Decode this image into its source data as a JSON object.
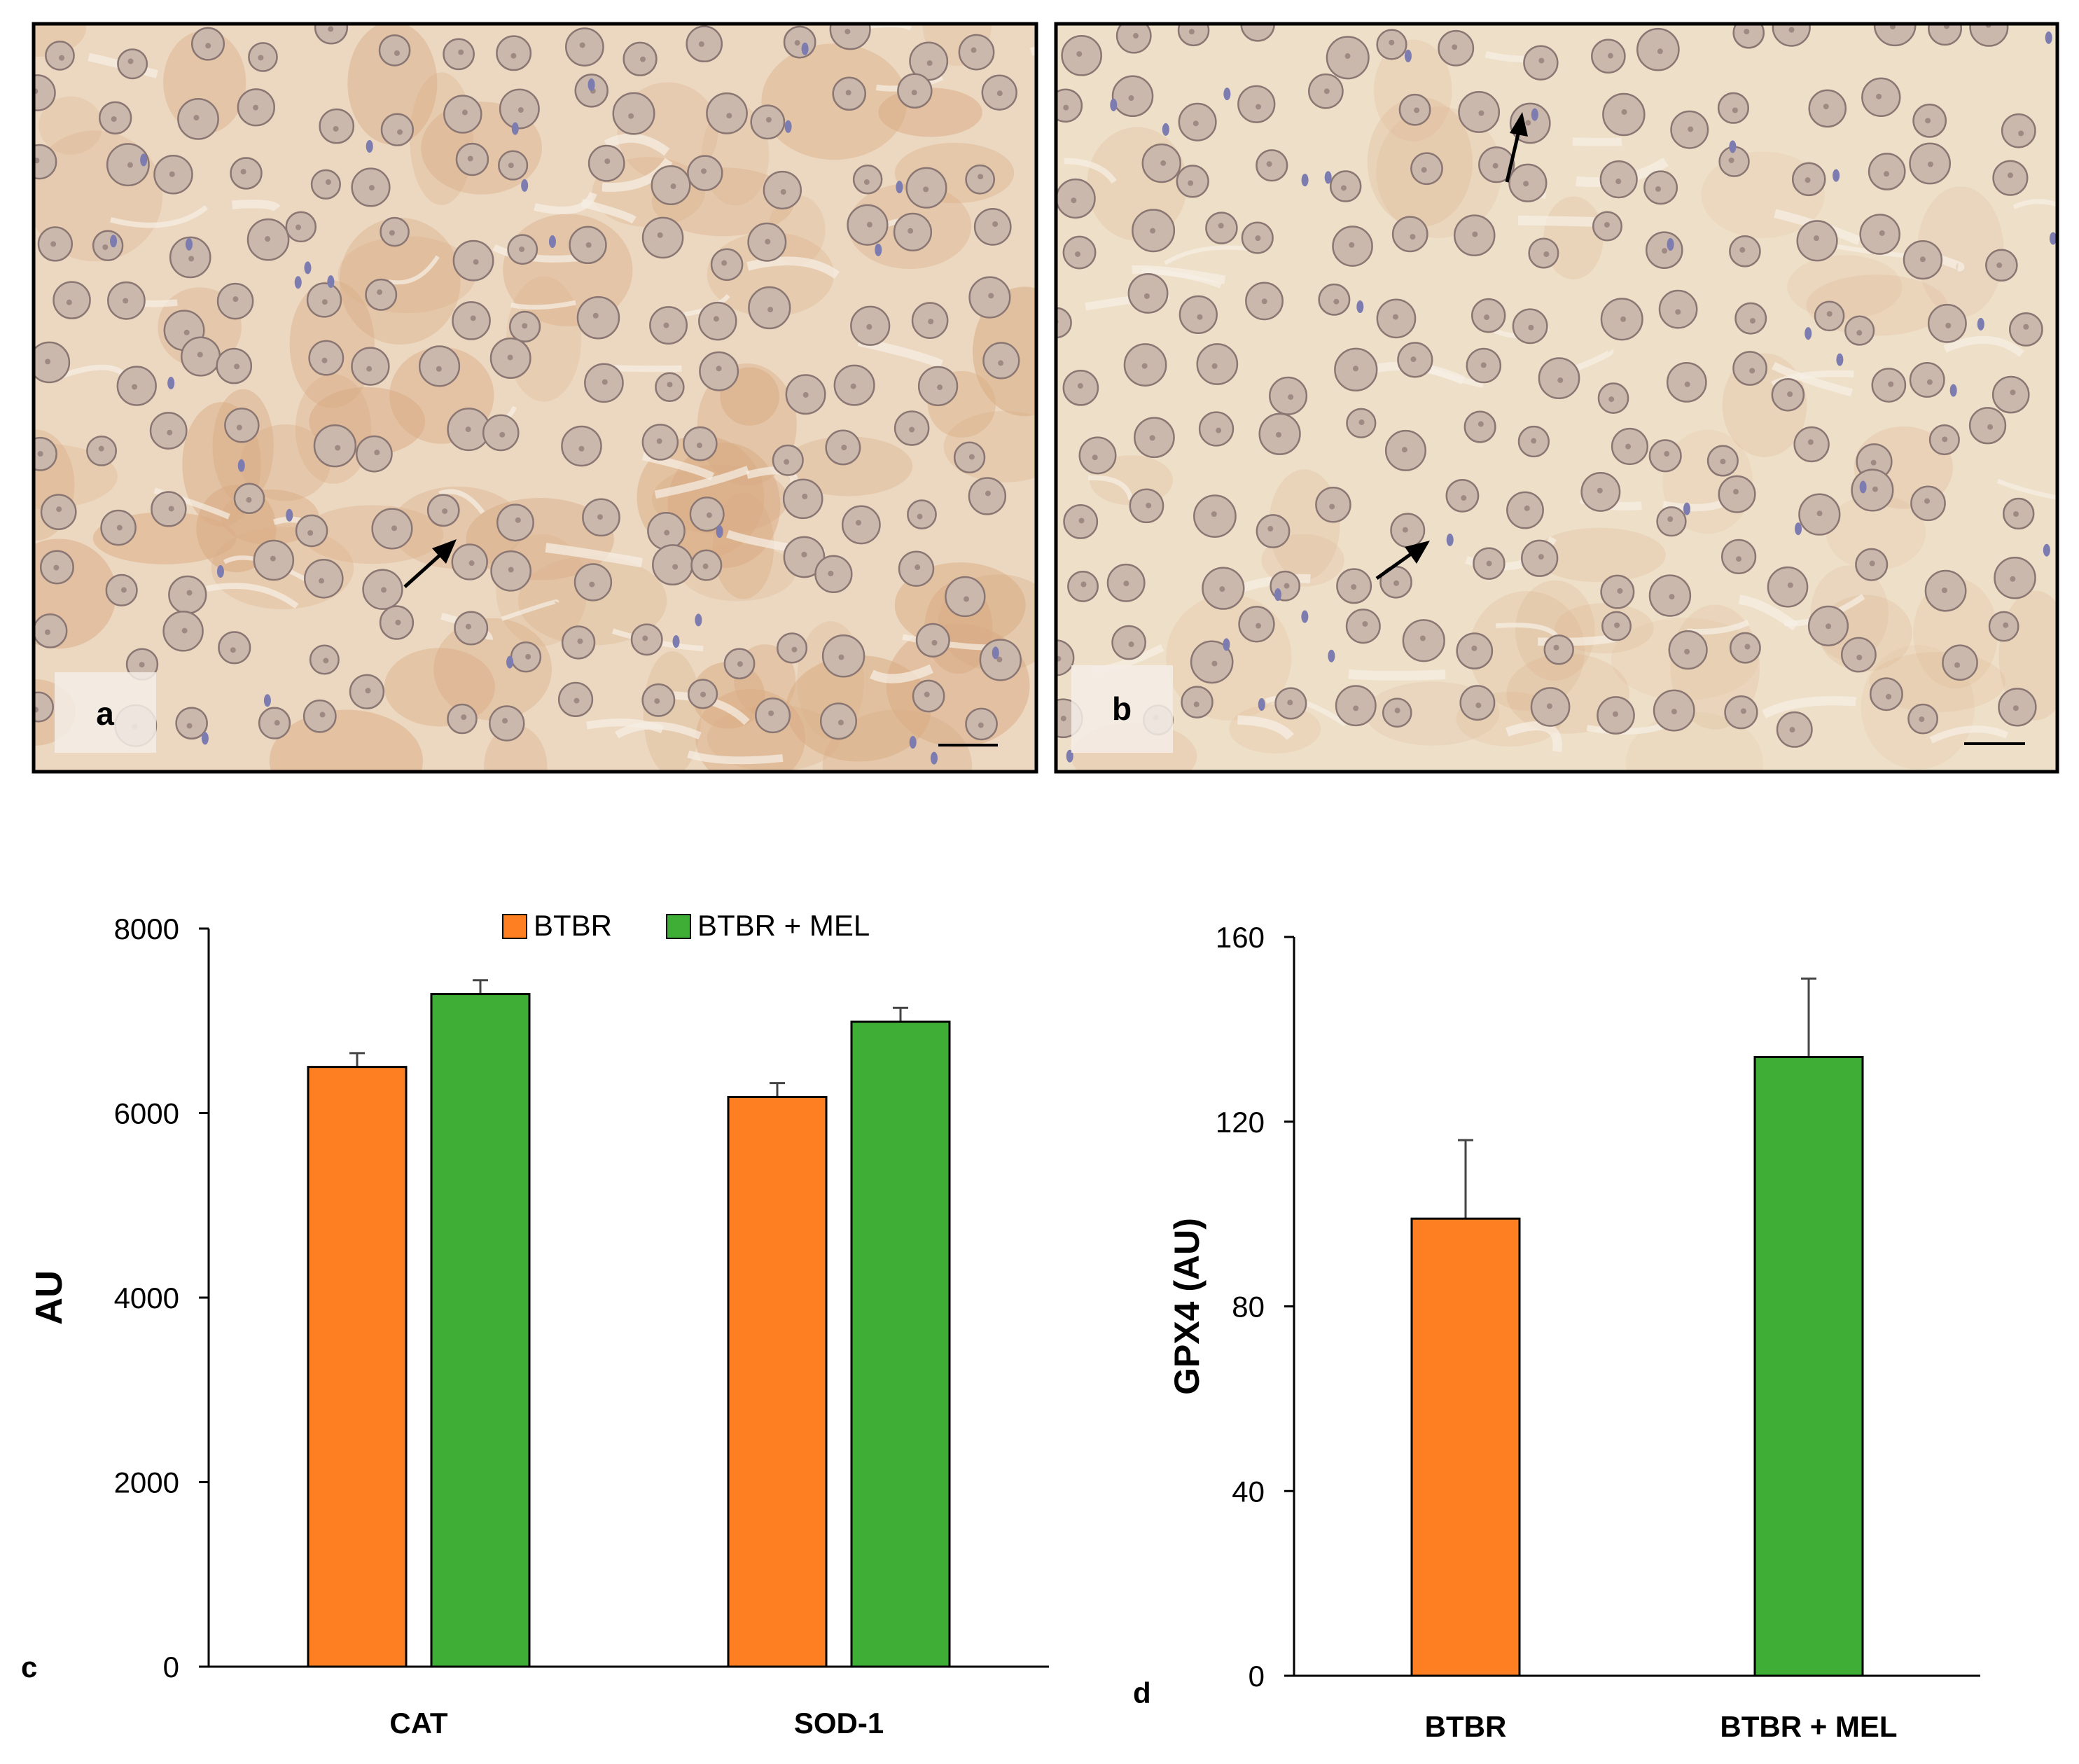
{
  "panels": {
    "a": {
      "letter": "a"
    },
    "b": {
      "letter": "b"
    },
    "c": {
      "letter": "c"
    },
    "d": {
      "letter": "d"
    }
  },
  "colors": {
    "btbr": "#fe7f22",
    "btbr_mel": "#3fae37",
    "tissue_bg": "#ecd8c0",
    "tissue_bg_b": "#eedfc8",
    "stain_dark": "#d9ab84",
    "nucleus": "#cbb8ac",
    "nucleus_edge": "#8a7672",
    "small_nucleus": "#7d7cb0",
    "arrow": "#000000"
  },
  "chart_data": [
    {
      "panel": "c",
      "type": "bar",
      "categories": [
        "CAT",
        "SOD-1"
      ],
      "series": [
        {
          "name": "BTBR",
          "values": [
            6500,
            6175
          ],
          "errors": [
            150,
            150
          ]
        },
        {
          "name": "BTBR + MEL",
          "values": [
            7290,
            6990
          ],
          "errors": [
            150,
            150
          ]
        }
      ],
      "ylabel": "AU",
      "yticks": [
        "0",
        "2000",
        "4000",
        "6000",
        "8000"
      ],
      "ylim": [
        0,
        8000
      ],
      "legend": "top"
    },
    {
      "panel": "d",
      "type": "bar",
      "categories": [
        "BTBR",
        "BTBR + MEL"
      ],
      "series": [
        {
          "values": [
            99,
            134
          ],
          "errors": [
            17,
            17
          ]
        }
      ],
      "ylabel": "GPX4 (AU)",
      "yticks": [
        "0",
        "40",
        "80",
        "120",
        "160"
      ],
      "ylim": [
        0,
        160
      ],
      "legend": "none"
    }
  ]
}
